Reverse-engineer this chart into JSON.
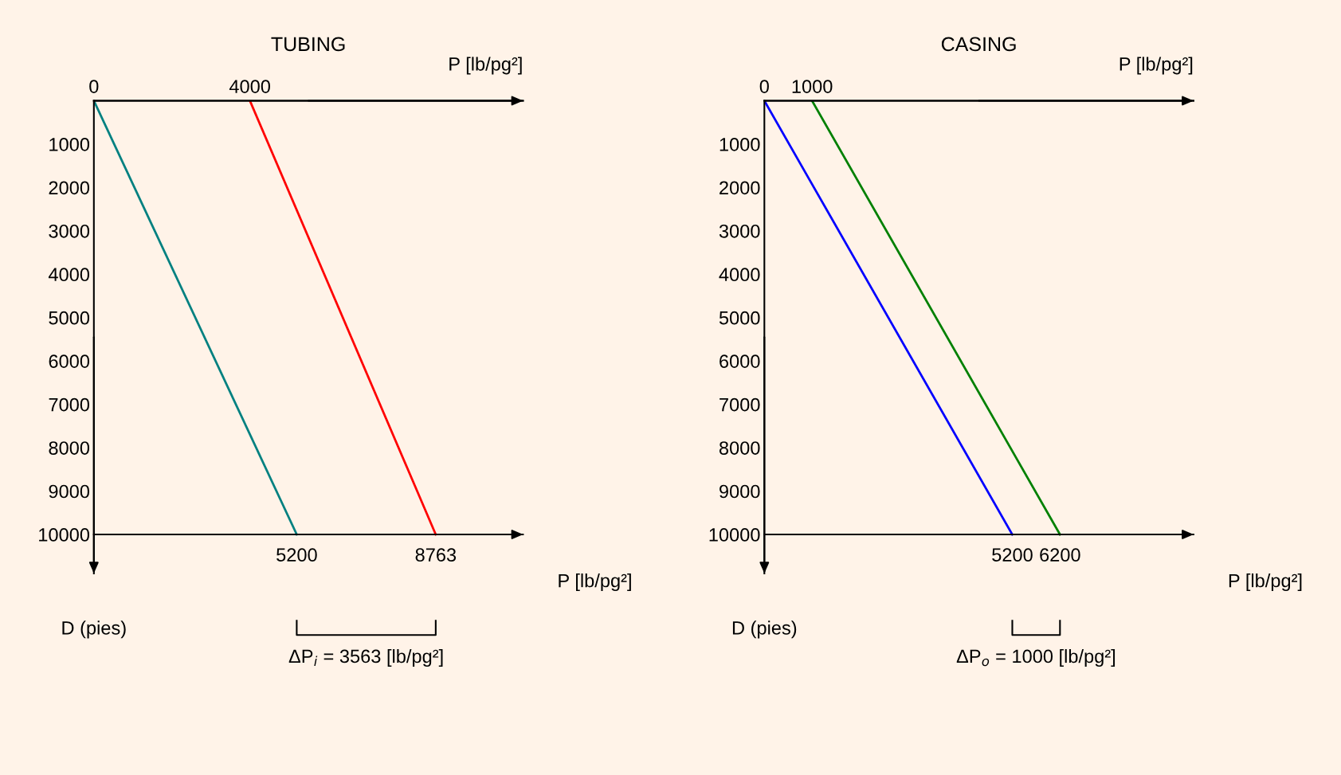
{
  "chart_data": [
    {
      "type": "line",
      "title": "TUBING",
      "x2label": "P [lb/pg²]",
      "xlabel": "P [lb/pg²]",
      "ylabel": "D (pies)",
      "xlim": [
        0,
        11000
      ],
      "x2lim": [
        0,
        11000
      ],
      "xticks": [
        5200,
        8763
      ],
      "x2ticks": [
        0,
        4000
      ],
      "ylim": [
        10900,
        0
      ],
      "yticks": [
        1000,
        2000,
        3000,
        4000,
        5000,
        6000,
        7000,
        8000,
        9000,
        10000
      ],
      "grid": false,
      "marker": "none",
      "line_style": "solid",
      "series": [
        {
          "color": "#008080",
          "x": [
            0,
            5200
          ],
          "values": [
            0,
            10000
          ]
        },
        {
          "color": "#ff0000",
          "x": [
            4000,
            8763
          ],
          "values": [
            0,
            10000
          ]
        }
      ],
      "annotations": [
        "ΔP$_{i}$ = 3563 [lb/pg²]"
      ]
    },
    {
      "type": "line",
      "title": "CASING",
      "x2label": "P [lb/pg²]",
      "xlabel": "P [lb/pg²]",
      "ylabel": "D (pies)",
      "xlim": [
        0,
        9000
      ],
      "x2lim": [
        0,
        9000
      ],
      "xticks": [
        5200,
        6200
      ],
      "x2ticks": [
        0,
        1000
      ],
      "ylim": [
        10900,
        0
      ],
      "yticks": [
        1000,
        2000,
        3000,
        4000,
        5000,
        6000,
        7000,
        8000,
        9000,
        10000
      ],
      "grid": false,
      "marker": "none",
      "line_style": "solid",
      "series": [
        {
          "color": "#0000ff",
          "x": [
            0,
            5200
          ],
          "values": [
            0,
            10000
          ]
        },
        {
          "color": "#008000",
          "x": [
            1000,
            6200
          ],
          "values": [
            0,
            10000
          ]
        }
      ],
      "annotations": [
        "ΔP$_{o}$ = 1000 [lb/pg²]"
      ]
    }
  ]
}
